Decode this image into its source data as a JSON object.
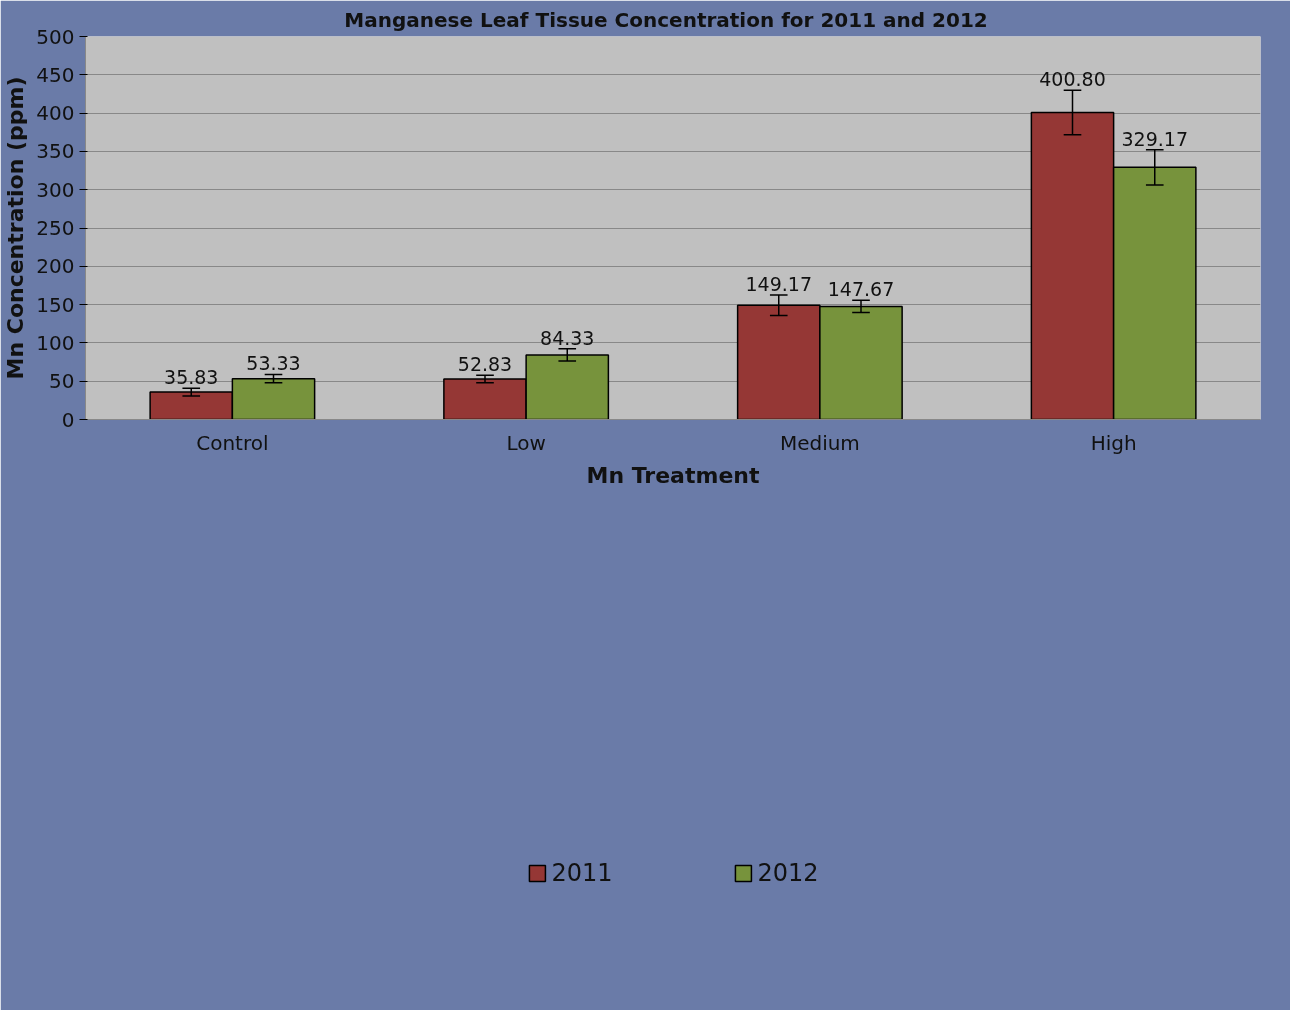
{
  "chart_data": {
    "type": "bar",
    "title": "Manganese  Leaf Tissue  Concentration for 2011 and 2012",
    "xlabel": "Mn Treatment",
    "ylabel": "Mn Concentration (ppm)",
    "categories": [
      "Control",
      "Low",
      "Medium",
      "High"
    ],
    "series": [
      {
        "name": "2011",
        "color": "#953735",
        "values": [
          35.83,
          52.83,
          149.17,
          400.8
        ],
        "value_labels": [
          "35.83",
          "52.83",
          "149.17",
          "400.80"
        ],
        "errors": [
          5,
          5,
          13.5,
          29
        ]
      },
      {
        "name": "2012",
        "color": "#77933c",
        "values": [
          53.33,
          84.33,
          147.67,
          329.17
        ],
        "value_labels": [
          "53.33",
          "84.33",
          "147.67",
          "329.17"
        ],
        "errors": [
          5.5,
          8,
          8,
          23
        ]
      }
    ],
    "ylim": [
      0,
      500
    ],
    "yticks": [
      0,
      50,
      100,
      150,
      200,
      250,
      300,
      350,
      400,
      450,
      500
    ],
    "grid": "y",
    "legend": "bottom"
  }
}
